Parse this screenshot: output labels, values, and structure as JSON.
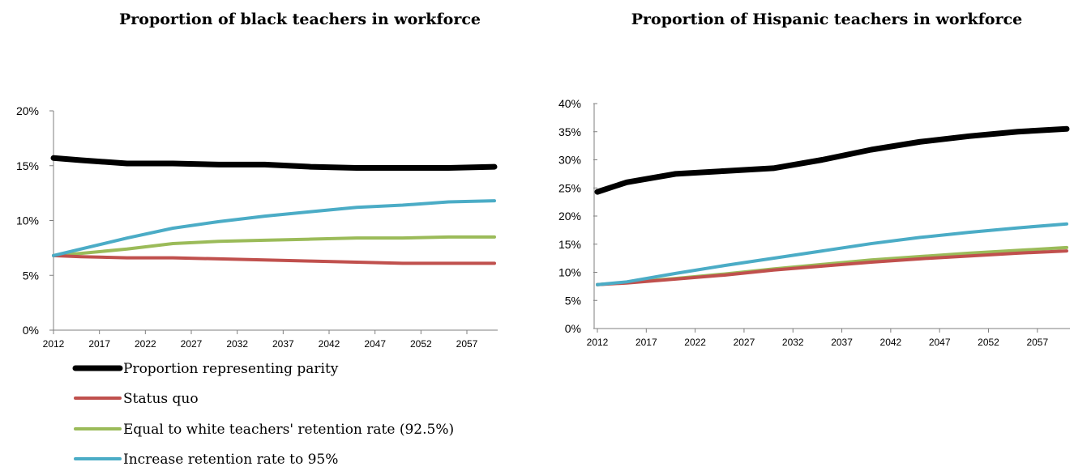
{
  "chart_data": [
    {
      "type": "line",
      "title": "Proportion of black teachers in workforce",
      "xlabel": "",
      "ylabel": "",
      "ylim": [
        0,
        20
      ],
      "y_ticks": [
        "0%",
        "5%",
        "10%",
        "15%",
        "20%"
      ],
      "x_ticks": [
        "2012",
        "2017",
        "2022",
        "2027",
        "2032",
        "2037",
        "2042",
        "2047",
        "2052",
        "2057"
      ],
      "xlim": [
        2012,
        2060
      ],
      "x": [
        2012,
        2015,
        2020,
        2025,
        2030,
        2035,
        2040,
        2045,
        2050,
        2055,
        2060
      ],
      "series": [
        {
          "name": "Proportion representing parity",
          "color": "#000000",
          "values": [
            15.7,
            15.5,
            15.2,
            15.2,
            15.1,
            15.1,
            14.9,
            14.8,
            14.8,
            14.8,
            14.9
          ]
        },
        {
          "name": "Status quo",
          "color": "#c0504d",
          "values": [
            6.8,
            6.7,
            6.6,
            6.6,
            6.5,
            6.4,
            6.3,
            6.2,
            6.1,
            6.1,
            6.1
          ]
        },
        {
          "name": "Equal to white teachers' retention rate  (92.5%)",
          "color": "#9bbb59",
          "values": [
            6.8,
            7.0,
            7.4,
            7.9,
            8.1,
            8.2,
            8.3,
            8.4,
            8.4,
            8.5,
            8.5
          ]
        },
        {
          "name": "Increase retention rate to 95%",
          "color": "#4bacc6",
          "values": [
            6.8,
            7.4,
            8.4,
            9.3,
            9.9,
            10.4,
            10.8,
            11.2,
            11.4,
            11.7,
            11.8
          ]
        }
      ],
      "legend": "bottom-left"
    },
    {
      "type": "line",
      "title": "Proportion of Hispanic teachers in workforce",
      "xlabel": "",
      "ylabel": "",
      "ylim": [
        0,
        40
      ],
      "y_ticks": [
        "0%",
        "5%",
        "10%",
        "15%",
        "20%",
        "25%",
        "30%",
        "35%",
        "40%"
      ],
      "x_ticks": [
        "2012",
        "2017",
        "2022",
        "2027",
        "2032",
        "2037",
        "2042",
        "2047",
        "2052",
        "2057"
      ],
      "xlim": [
        2012,
        2060
      ],
      "x": [
        2012,
        2015,
        2020,
        2025,
        2030,
        2035,
        2040,
        2045,
        2050,
        2055,
        2060
      ],
      "series": [
        {
          "color": "#000000",
          "values": [
            24.3,
            26.0,
            27.5,
            28.0,
            28.5,
            30.0,
            31.8,
            33.2,
            34.2,
            35.0,
            35.5
          ]
        },
        {
          "color": "#c0504d",
          "values": [
            7.8,
            8.1,
            8.8,
            9.5,
            10.4,
            11.1,
            11.8,
            12.4,
            12.9,
            13.4,
            13.8
          ]
        },
        {
          "color": "#9bbb59",
          "values": [
            7.8,
            8.2,
            8.9,
            9.7,
            10.6,
            11.4,
            12.2,
            12.8,
            13.4,
            13.9,
            14.4
          ]
        },
        {
          "color": "#4bacc6",
          "values": [
            7.8,
            8.3,
            9.8,
            11.2,
            12.5,
            13.8,
            15.1,
            16.2,
            17.1,
            17.9,
            18.6
          ]
        }
      ]
    }
  ]
}
